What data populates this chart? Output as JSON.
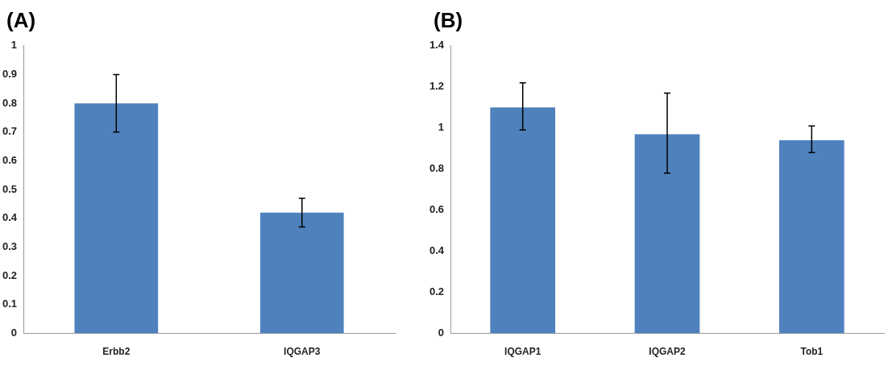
{
  "chart_data": [
    {
      "type": "bar",
      "title": "(A)",
      "categories": [
        "Erbb2",
        "IQGAP3"
      ],
      "color": "#4f81bd",
      "values": [
        0.8,
        0.42
      ],
      "errors": [
        [
          0.7,
          0.9
        ],
        [
          0.37,
          0.47
        ]
      ],
      "ylim": [
        0,
        1
      ],
      "yticks": [
        0,
        0.1,
        0.2,
        0.3,
        0.4,
        0.5,
        0.6,
        0.7,
        0.8,
        0.9,
        1
      ],
      "grid": false,
      "legend": false
    },
    {
      "type": "bar",
      "title": "(B)",
      "categories": [
        "IQGAP1",
        "IQGAP2",
        "Tob1"
      ],
      "color": "#4f81bd",
      "values": [
        1.1,
        0.97,
        0.94
      ],
      "errors": [
        [
          0.99,
          1.22
        ],
        [
          0.78,
          1.17
        ],
        [
          0.88,
          1.01
        ]
      ],
      "ylim": [
        0,
        1.4
      ],
      "yticks": [
        0,
        0.2,
        0.4,
        0.6,
        0.8,
        1,
        1.2,
        1.4
      ],
      "grid": false,
      "legend": false
    }
  ]
}
